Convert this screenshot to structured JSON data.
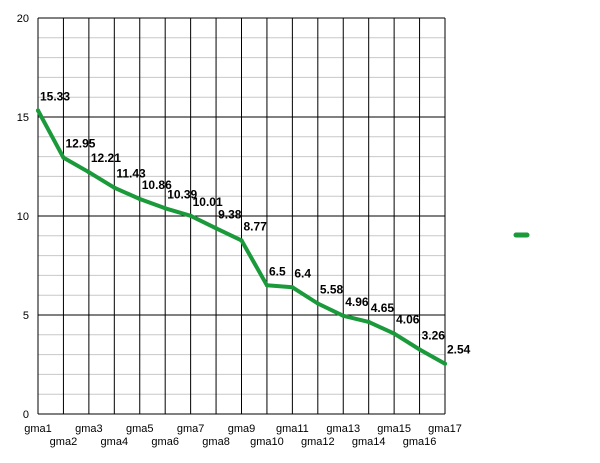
{
  "chart_data": {
    "type": "line",
    "categories": [
      "gma1",
      "gma2",
      "gma3",
      "gma4",
      "gma5",
      "gma6",
      "gma7",
      "gma8",
      "gma9",
      "gma10",
      "gma11",
      "gma12",
      "gma13",
      "gma14",
      "gma15",
      "gma16",
      "gma17"
    ],
    "series": [
      {
        "values": [
          15.33,
          12.95,
          12.21,
          11.43,
          10.86,
          10.39,
          10.01,
          9.38,
          8.77,
          6.5,
          6.4,
          5.58,
          4.96,
          4.65,
          4.06,
          3.26,
          2.54
        ],
        "labels": [
          "15.33",
          "12.95",
          "12.21",
          "11.43",
          "10.86",
          "10.39",
          "10.01",
          "9.38",
          "8.77",
          "6.5",
          "6.4",
          "5.58",
          "4.96",
          "4.65",
          "4.06",
          "3.26",
          "2.54"
        ],
        "color": "#1a9a3a"
      }
    ],
    "ylim": [
      0,
      20
    ],
    "yticks": [
      "0",
      "5",
      "10",
      "15",
      "20"
    ],
    "minor_grid_step": 1,
    "grid": true,
    "legend": "right",
    "title": "",
    "xlabel": "",
    "ylabel": ""
  }
}
